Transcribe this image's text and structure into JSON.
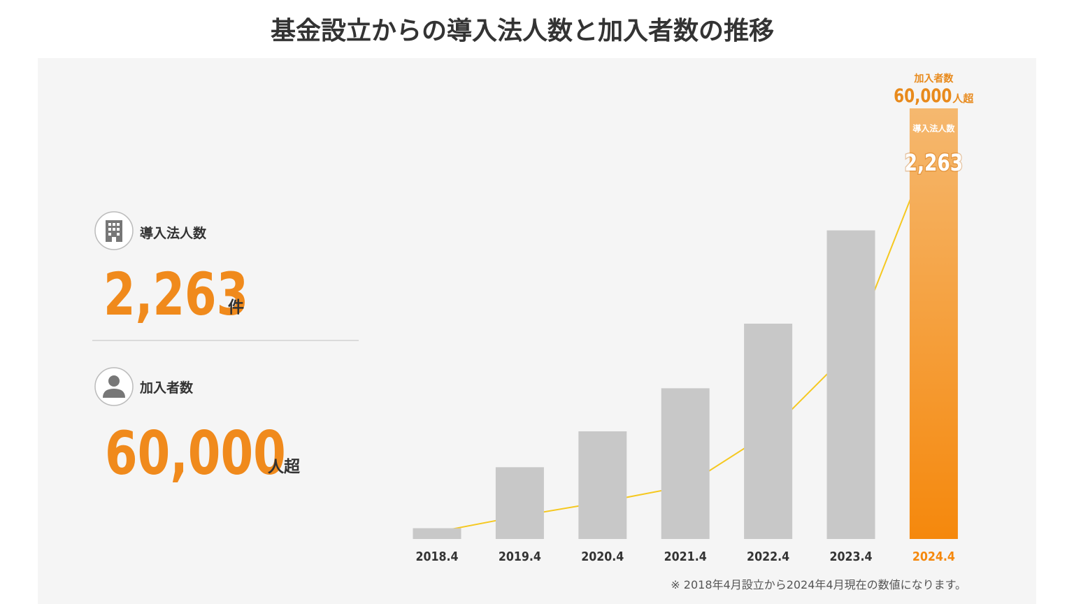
{
  "title": "基金設立からの導入法人数と加入者数の推移",
  "footnote": "※ 2018年4月設立から2024年4月現在の数値になります。",
  "chart_data": {
    "type": "bar",
    "categories": [
      "2018.4",
      "2019.4",
      "2020.4",
      "2021.4",
      "2022.4",
      "2023.4",
      "2024.4"
    ],
    "highlight_colors": [
      "#f5b86f",
      "#f5880c"
    ],
    "series": [
      {
        "name": "加入者数",
        "type": "bar",
        "color": "#c8c8c8",
        "unit": "人超",
        "values": [
          1500,
          10000,
          15000,
          21000,
          30000,
          43000,
          60000
        ],
        "value_labels": [
          null,
          null,
          null,
          null,
          null,
          null,
          "60,000"
        ]
      },
      {
        "name": "導入法人数",
        "type": "line",
        "color": "#f5c820",
        "unit": "件",
        "values": [
          40,
          130,
          210,
          300,
          600,
          1070,
          2263
        ],
        "value_labels": [
          null,
          null,
          null,
          null,
          null,
          null,
          "2,263"
        ]
      }
    ]
  }
}
